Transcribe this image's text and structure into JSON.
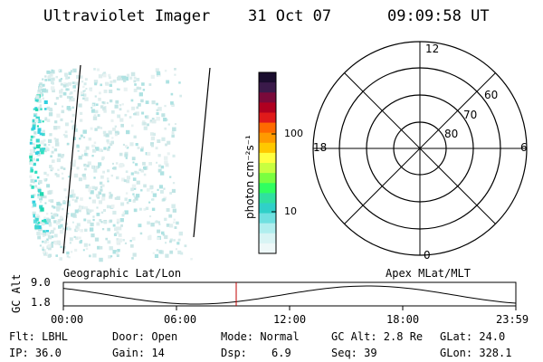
{
  "header": {
    "instrument": "Ultraviolet Imager",
    "date": "31 Oct 07",
    "time": "09:09:58 UT"
  },
  "colorbar": {
    "unit_label": "photon cm⁻²s⁻¹",
    "tick_labels": [
      "100",
      "10"
    ],
    "colors": [
      "#1a0d2e",
      "#3a1a4a",
      "#7a0a3a",
      "#b00020",
      "#e01a1a",
      "#ff6a00",
      "#ff9a00",
      "#ffc800",
      "#ffff40",
      "#c8ff40",
      "#7aff40",
      "#30ff60",
      "#30e0a0",
      "#30d0c8",
      "#70e0e0",
      "#b0eeee",
      "#d8f4f4",
      "#eef8f8"
    ]
  },
  "polar": {
    "mlt_labels": {
      "top": "12",
      "left": "18",
      "right": "6",
      "bottom": "0"
    },
    "lat_labels": [
      "60",
      "70",
      "80"
    ]
  },
  "timeline": {
    "ylabel": "GC Alt",
    "ytick_top": "9.0",
    "ytick_bottom": "1.8",
    "left_caption": "Geographic Lat/Lon",
    "right_caption": "Apex MLat/MLT",
    "x_ticks": [
      "00:00",
      "06:00",
      "12:00",
      "18:00",
      "23:59"
    ],
    "current_time_marker": "09:09:58"
  },
  "info": {
    "filter": "Flt: LBHL",
    "ip": "IP: 36.0",
    "door": "Door: Open",
    "gain": "Gain: 14",
    "mode": "Mode: Normal",
    "dsp_label": "Dsp:",
    "dsp_value": "6.9",
    "gc_alt": "GC Alt: 2.8 Re",
    "seq": "Seq: 39",
    "glat": "GLat: 24.0",
    "glon": "GLon: 328.1"
  }
}
